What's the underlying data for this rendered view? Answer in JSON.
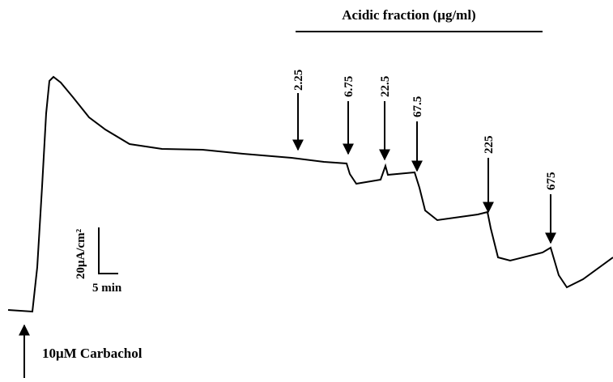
{
  "header": {
    "title": "Acidic fraction (μg/ml)"
  },
  "doses": [
    "2.25",
    "6.75",
    "22.5",
    "67.5",
    "225",
    "675"
  ],
  "scale_bar": {
    "vertical": "20μA/cm²",
    "horizontal": "5 min"
  },
  "stimulus": {
    "label": "10μM Carbachol"
  }
}
